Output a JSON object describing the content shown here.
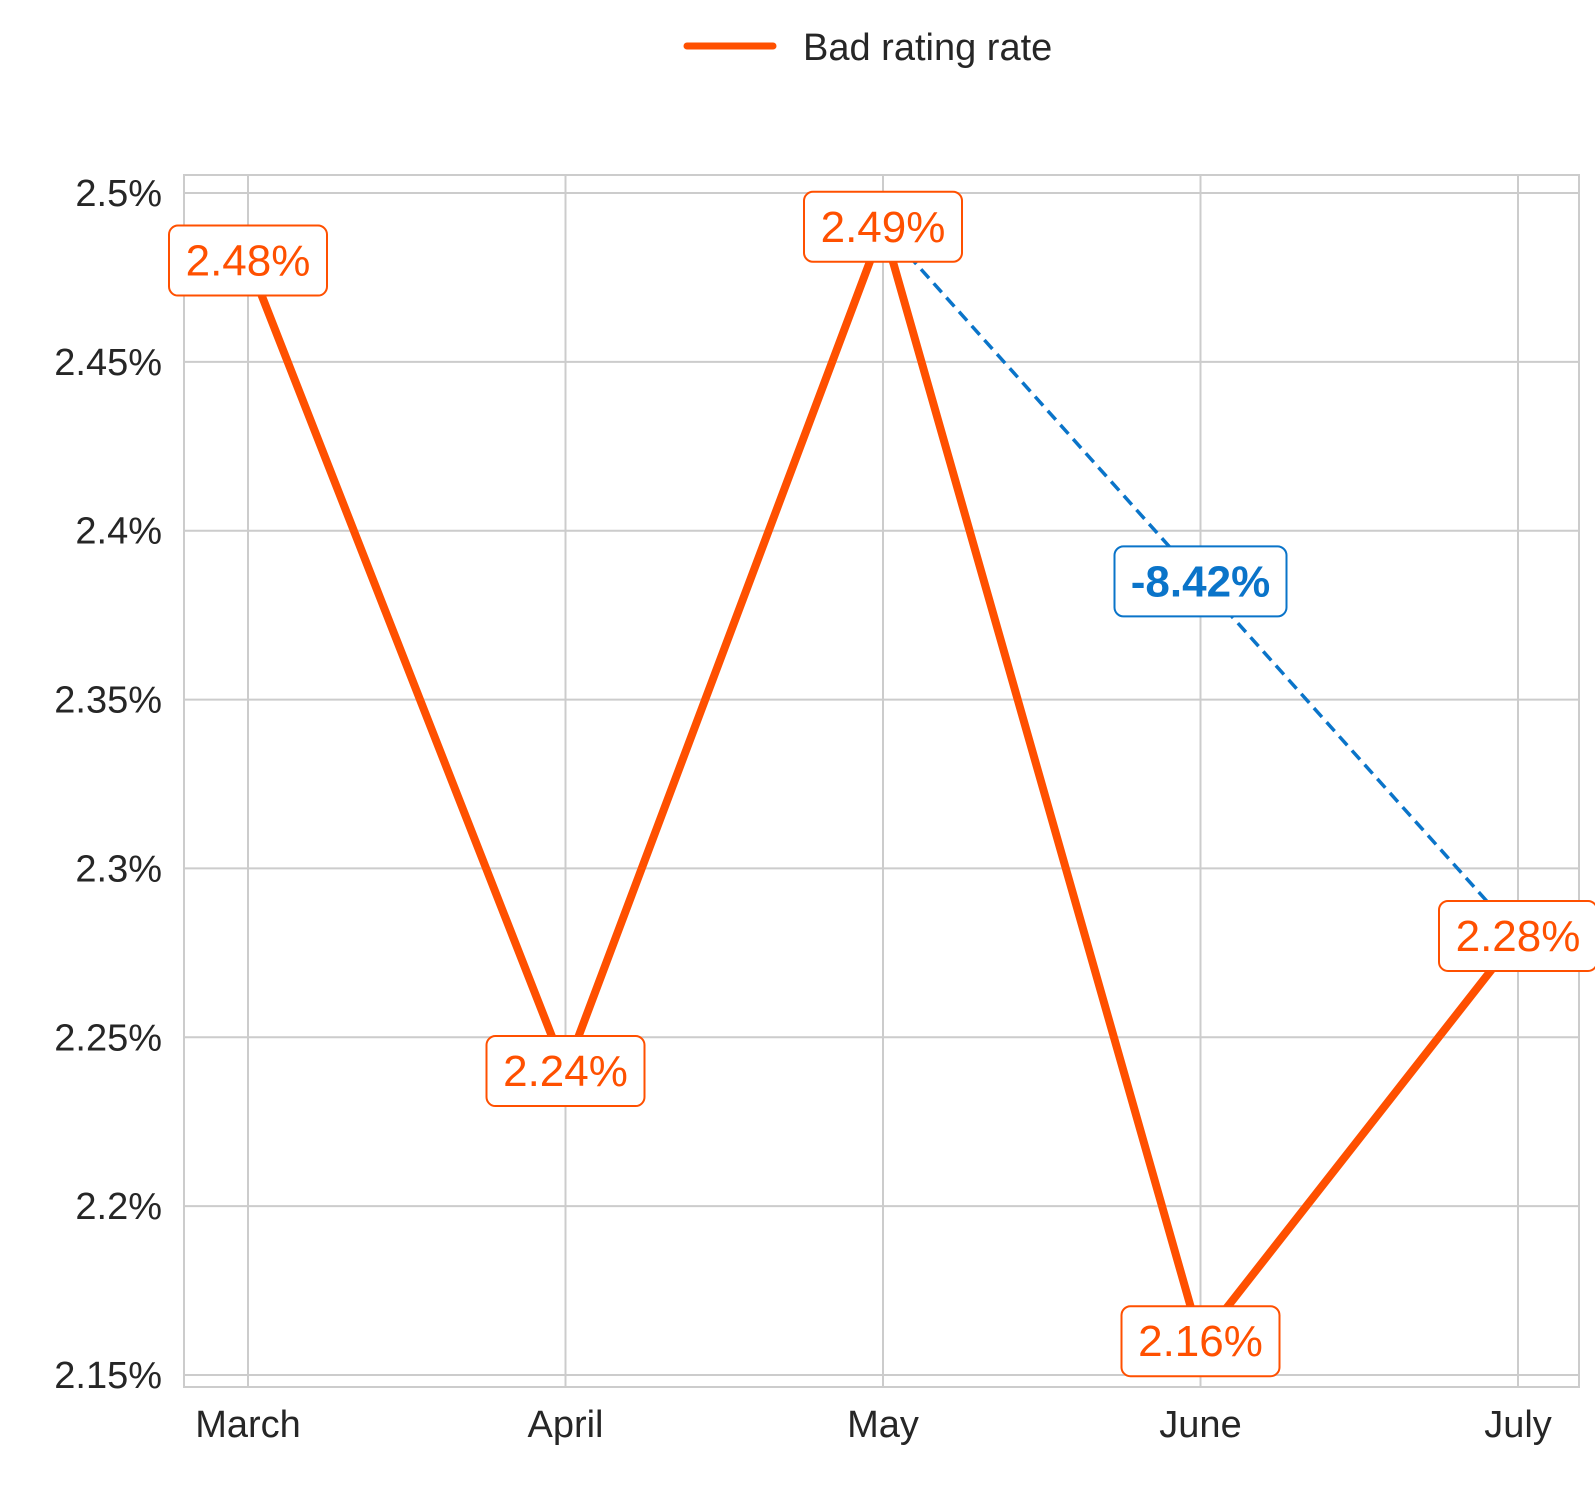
{
  "chart_data": {
    "type": "line",
    "categories": [
      "March",
      "April",
      "May",
      "June",
      "July"
    ],
    "series": [
      {
        "name": "Bad rating rate",
        "values": [
          2.48,
          2.24,
          2.49,
          2.16,
          2.28
        ],
        "labels": [
          "2.48%",
          "2.24%",
          "2.49%",
          "2.16%",
          "2.28%"
        ],
        "color": "#FF5000"
      }
    ],
    "ylim": [
      2.145,
      2.505
    ],
    "yticks": [
      2.15,
      2.2,
      2.25,
      2.3,
      2.35,
      2.4,
      2.45,
      2.5
    ],
    "ytick_labels": [
      "2.15%",
      "2.2%",
      "2.25%",
      "2.3%",
      "2.35%",
      "2.4%",
      "2.45%",
      "2.5%"
    ],
    "xlabel": "",
    "ylabel": "",
    "grid": true,
    "legend_position": "top-center",
    "annotation": {
      "from": "May",
      "to": "July",
      "text": "-8.42%",
      "color": "#0A74C9",
      "style": "dashed"
    }
  }
}
